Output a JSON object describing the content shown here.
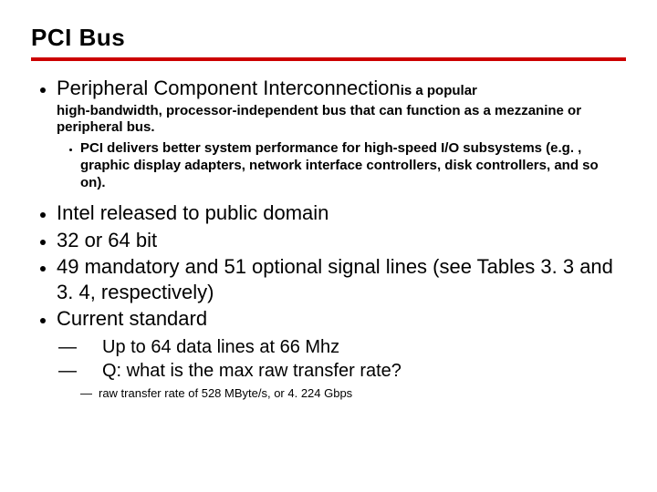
{
  "colors": {
    "rule": "#cc0000",
    "text": "#000000",
    "background": "#ffffff"
  },
  "title": "PCI Bus",
  "bullets": {
    "b1_lead": "Peripheral Component Interconnection",
    "b1_runon": "is a popular",
    "b1_desc": "high-bandwidth, processor-independent bus that can function as a mezzanine or peripheral bus.",
    "b1_sub1": "PCI delivers better system performance for high-speed I/O subsystems (e.g. , graphic display adapters, network interface controllers, disk controllers, and so on).",
    "b2": "Intel released to public domain",
    "b3": "32 or 64 bit",
    "b4": "49 mandatory and 51 optional signal lines (see Tables 3. 3 and 3. 4, respectively)",
    "b5": "Current standard",
    "b5_d1": "Up to 64 data lines at 66 Mhz",
    "b5_d2": "Q: what is the max raw transfer rate?",
    "b5_d3": "raw transfer rate of 528 MByte/s, or 4. 224 Gbps"
  },
  "dashes": {
    "em": "—",
    "em2": "—"
  }
}
